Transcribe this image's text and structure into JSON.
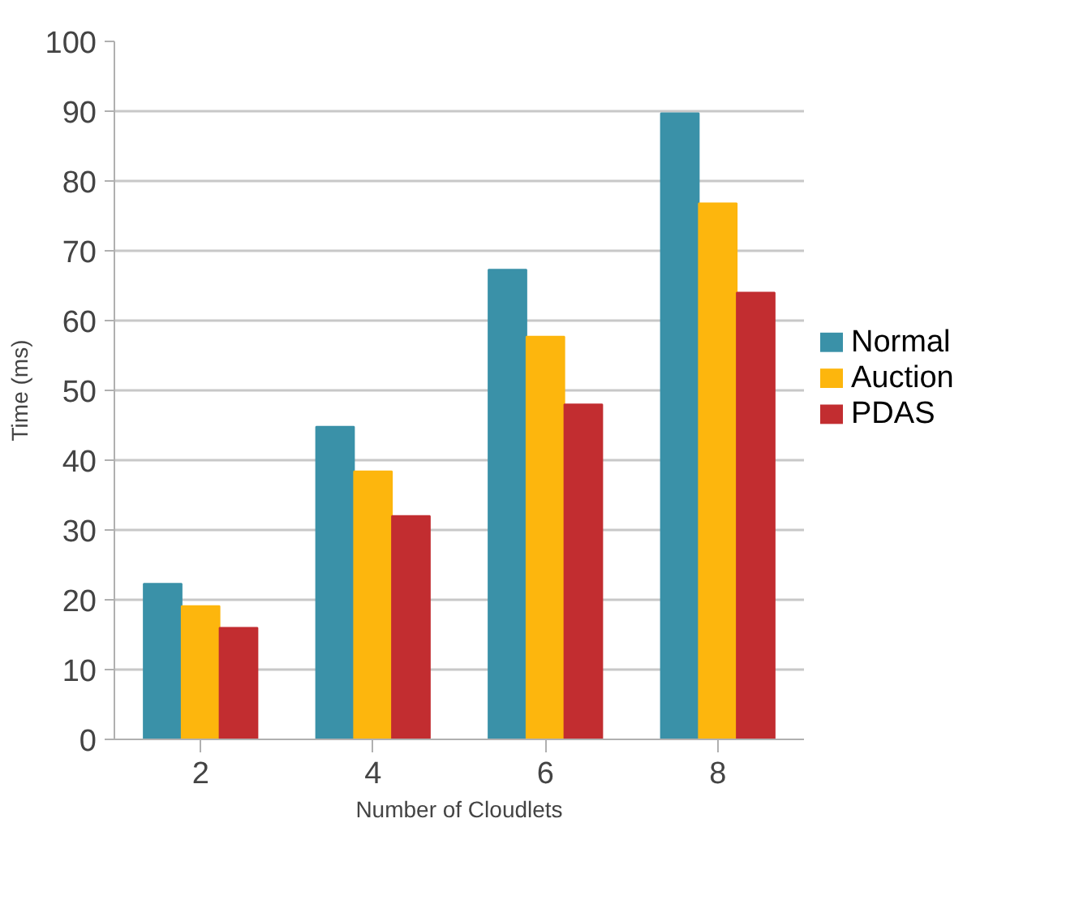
{
  "chart_data": {
    "type": "bar",
    "xlabel": "Number of Cloudlets",
    "ylabel": "Time (ms)",
    "categories": [
      "2",
      "4",
      "6",
      "8"
    ],
    "series": [
      {
        "name": "Normal",
        "color": "#3a91a8",
        "values": [
          22.3,
          44.8,
          67.3,
          89.7
        ]
      },
      {
        "name": "Auction",
        "color": "#fdb60d",
        "values": [
          19.1,
          38.4,
          57.7,
          76.8
        ]
      },
      {
        "name": "PDAS",
        "color": "#c22d30",
        "values": [
          16,
          32,
          48,
          64
        ]
      }
    ],
    "ylim": [
      0,
      100
    ],
    "yticks": [
      0,
      10,
      20,
      30,
      40,
      50,
      60,
      70,
      80,
      90,
      100
    ],
    "grid": "y",
    "legend": "right"
  }
}
